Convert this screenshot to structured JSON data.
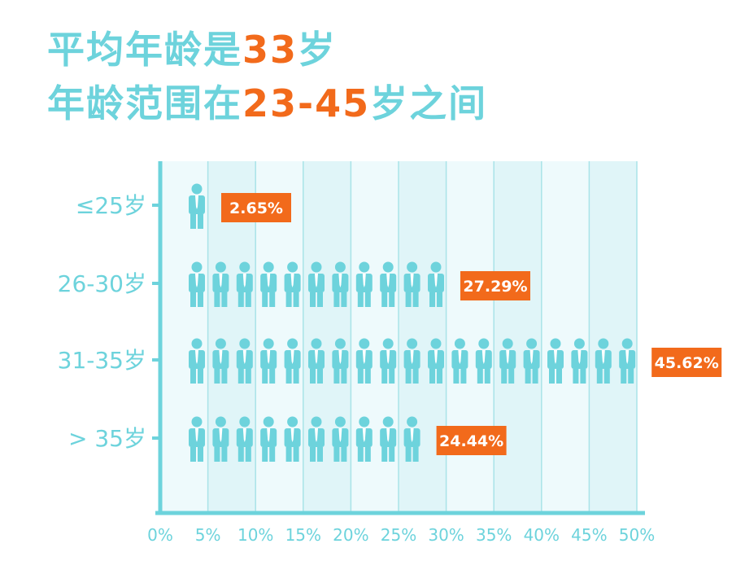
{
  "header": {
    "line1_pre": "平均年龄是",
    "line1_hl": "33",
    "line1_post": "岁",
    "line2_pre": "年龄范围在",
    "line2_hl": "23-45",
    "line2_post": "岁之间"
  },
  "colors": {
    "teal": "#6dd3dc",
    "orange": "#f26a1b",
    "band_light": "#eefafc",
    "band_dark": "#e0f5f8",
    "grid": "#a9e3e8"
  },
  "chart_data": {
    "type": "bar",
    "orientation": "horizontal",
    "pictogram": "person-icon",
    "categories": [
      "≤25岁",
      "26-30岁",
      "31-35岁",
      "> 35岁"
    ],
    "values": [
      2.65,
      27.29,
      45.62,
      24.44
    ],
    "value_labels": [
      "2.65%",
      "27.29%",
      "45.62%",
      "24.44%"
    ],
    "xticks": [
      "0%",
      "5%",
      "10%",
      "15%",
      "20%",
      "25%",
      "30%",
      "35%",
      "40%",
      "45%",
      "50%"
    ],
    "xlim": [
      0,
      50
    ]
  }
}
